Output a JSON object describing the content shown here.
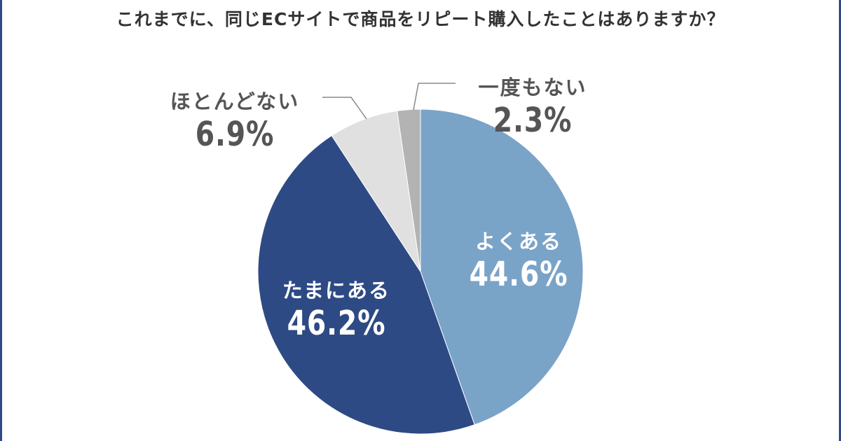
{
  "chart_data": {
    "type": "pie",
    "title": "これまでに、同じECサイトで商品をリピート購入したことはありますか？",
    "slices": [
      {
        "label": "よくある",
        "value": 44.6,
        "display": "44.6%",
        "color": "#7aa3c8"
      },
      {
        "label": "たまにある",
        "value": 46.2,
        "display": "46.2%",
        "color": "#2e4a85"
      },
      {
        "label": "ほとんどない",
        "value": 6.9,
        "display": "6.9%",
        "color": "#e0e0e0"
      },
      {
        "label": "一度もない",
        "value": 2.3,
        "display": "2.3%",
        "color": "#b3b3b3"
      }
    ],
    "start": "top",
    "direction": "clockwise"
  }
}
